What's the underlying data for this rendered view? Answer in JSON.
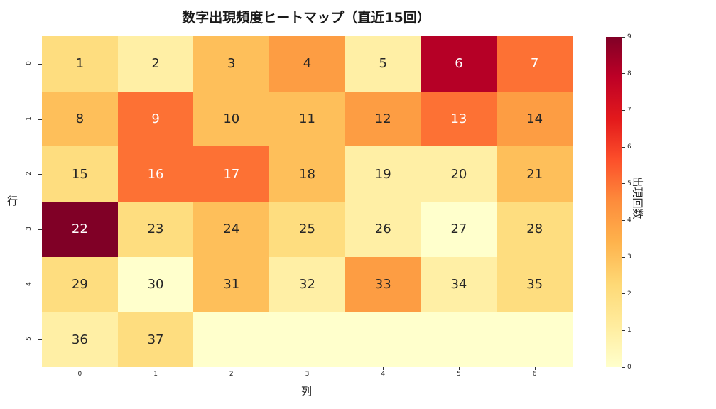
{
  "title": "数字出現頻度ヒートマップ（直近15回）",
  "xlabel": "列",
  "ylabel": "行",
  "colorbar_label": "出現回数",
  "x_ticks": [
    "0",
    "1",
    "2",
    "3",
    "4",
    "5",
    "6"
  ],
  "y_ticks": [
    "0",
    "1",
    "2",
    "3",
    "4",
    "5"
  ],
  "colorbar_ticks": [
    "0",
    "1",
    "2",
    "3",
    "4",
    "5",
    "6",
    "7",
    "8",
    "9"
  ],
  "colormap": [
    "#ffffcc",
    "#ffeda0",
    "#fed976",
    "#feb24c",
    "#fd8d3c",
    "#fc4e2a",
    "#e31a1c",
    "#bd0026",
    "#800026"
  ],
  "chart_data": {
    "type": "heatmap",
    "title": "数字出現頻度ヒートマップ（直近15回）",
    "xlabel": "列",
    "ylabel": "行",
    "x_categories": [
      "0",
      "1",
      "2",
      "3",
      "4",
      "5",
      "6"
    ],
    "y_categories": [
      "0",
      "1",
      "2",
      "3",
      "4",
      "5"
    ],
    "annotations": [
      [
        "1",
        "2",
        "3",
        "4",
        "5",
        "6",
        "7"
      ],
      [
        "8",
        "9",
        "10",
        "11",
        "12",
        "13",
        "14"
      ],
      [
        "15",
        "16",
        "17",
        "18",
        "19",
        "20",
        "21"
      ],
      [
        "22",
        "23",
        "24",
        "25",
        "26",
        "27",
        "28"
      ],
      [
        "29",
        "30",
        "31",
        "32",
        "33",
        "34",
        "35"
      ],
      [
        "36",
        "37",
        "",
        "",
        "",
        "",
        ""
      ]
    ],
    "values": [
      [
        2,
        1,
        3,
        4,
        1,
        8,
        5
      ],
      [
        3,
        5,
        3,
        3,
        4,
        5,
        4
      ],
      [
        2,
        5,
        5,
        3,
        1,
        1,
        3
      ],
      [
        9,
        2,
        3,
        2,
        1,
        0,
        2
      ],
      [
        2,
        0,
        3,
        1,
        4,
        1,
        2
      ],
      [
        1,
        2,
        0,
        0,
        0,
        0,
        0
      ]
    ],
    "colorbar": {
      "label": "出現回数",
      "range": [
        0,
        9
      ],
      "cmap": "YlOrRd"
    }
  }
}
